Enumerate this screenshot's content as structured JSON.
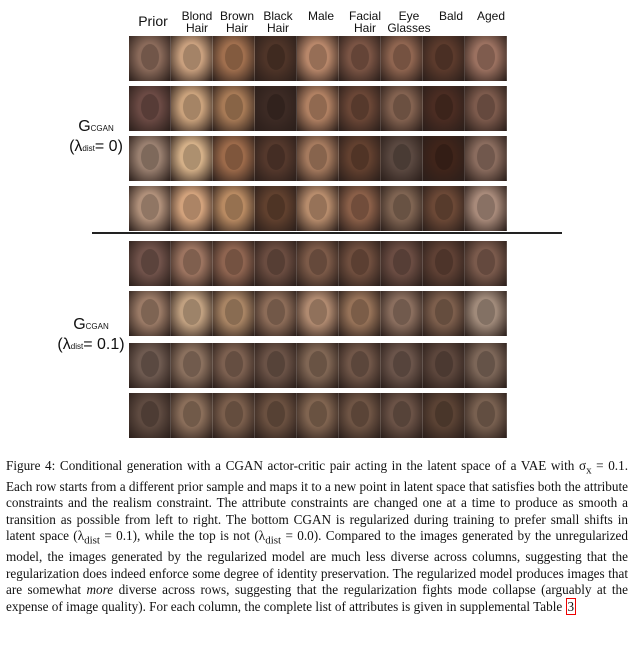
{
  "columns": [
    "Prior",
    "Blond Hair",
    "Brown Hair",
    "Black Hair",
    "Male",
    "Facial Hair",
    "Eye Glasses",
    "Bald",
    "Aged"
  ],
  "column_lines": [
    [
      "Prior"
    ],
    [
      "Blond",
      "Hair"
    ],
    [
      "Brown",
      "Hair"
    ],
    [
      "Black",
      "Hair"
    ],
    [
      "Male"
    ],
    [
      "Facial",
      "Hair"
    ],
    [
      "Eye",
      "Glasses"
    ],
    [
      "Bald"
    ],
    [
      "Aged"
    ]
  ],
  "top_group": {
    "label_main": "G",
    "label_sub": "CGAN",
    "param_open": "(λ",
    "param_sub": "dist",
    "param_close": "= 0)"
  },
  "bottom_group": {
    "label_main": "G",
    "label_sub": "CGAN",
    "param_open": "(λ",
    "param_sub": "dist",
    "param_close": "= 0.1)"
  },
  "face_palette": [
    [
      "#8a6a5a",
      "#c9a07e",
      "#a06f4e",
      "#4e3428",
      "#b8876a",
      "#7a5444",
      "#8f6550",
      "#5b3a2c",
      "#9b7160"
    ],
    [
      "#6b4a44",
      "#caa27c",
      "#a77a56",
      "#3c2a24",
      "#b08062",
      "#6a4636",
      "#836250",
      "#4a2c22",
      "#7c5a4c"
    ],
    [
      "#9a8070",
      "#d4b088",
      "#9c6a4a",
      "#54382c",
      "#a57a5e",
      "#62402f",
      "#5a4840",
      "#3f241a",
      "#8a6c5e"
    ],
    [
      "#b0907a",
      "#d2a27c",
      "#b88a62",
      "#60402e",
      "#b78c6c",
      "#8a5f48",
      "#7f6452",
      "#6b4836",
      "#a88a7a"
    ],
    [
      "#70524a",
      "#9c7460",
      "#8e6450",
      "#6a4c40",
      "#7c5a48",
      "#6f4e3e",
      "#6a4c42",
      "#5e4034",
      "#7a5a4c"
    ],
    [
      "#9a7a66",
      "#c0a080",
      "#a88464",
      "#8c6c58",
      "#b08a70",
      "#967258",
      "#8a6e5e",
      "#7c5e4c",
      "#a08a7a"
    ],
    [
      "#6e5a50",
      "#8a705e",
      "#7c6050",
      "#6a5246",
      "#806654",
      "#705648",
      "#6a544a",
      "#5c463c",
      "#7c6658"
    ],
    [
      "#5e4a40",
      "#8a6e5a",
      "#7a5e4c",
      "#6a5040",
      "#806450",
      "#6e5444",
      "#6a5246",
      "#5a4234",
      "#786050"
    ]
  ],
  "caption": {
    "lead": "Figure 4: Conditional generation with a CGAN actor-critic pair acting in the latent space of a VAE with σ",
    "sigma_sub": "x",
    "part1": " = 0.1. Each row starts from a different prior sample and maps it to a new point in latent space that satisfies both the attribute constraints and the realism constraint. The attribute constraints are changed one at a time to produce as smooth a transition as possible from left to right. The bottom CGAN is regularized during training to prefer small shifts in latent space (λ",
    "lambda_sub_1": "dist",
    "part2": " = 0.1), while the top is not (λ",
    "lambda_sub_2": "dist",
    "part3": " = 0.0). Compared to the images generated by the unregularized model, the images generated by the regularized model are much less diverse across columns, suggesting that the regularization does indeed enforce some degree of identity preservation. The regularized model produces images that are somewhat ",
    "emph": "more",
    "part4": " diverse across rows, suggesting that the regularization fights mode collapse (arguably at the expense of image quality). For each column, the complete list of attributes is given in supplemental Table ",
    "table_ref": "3"
  }
}
